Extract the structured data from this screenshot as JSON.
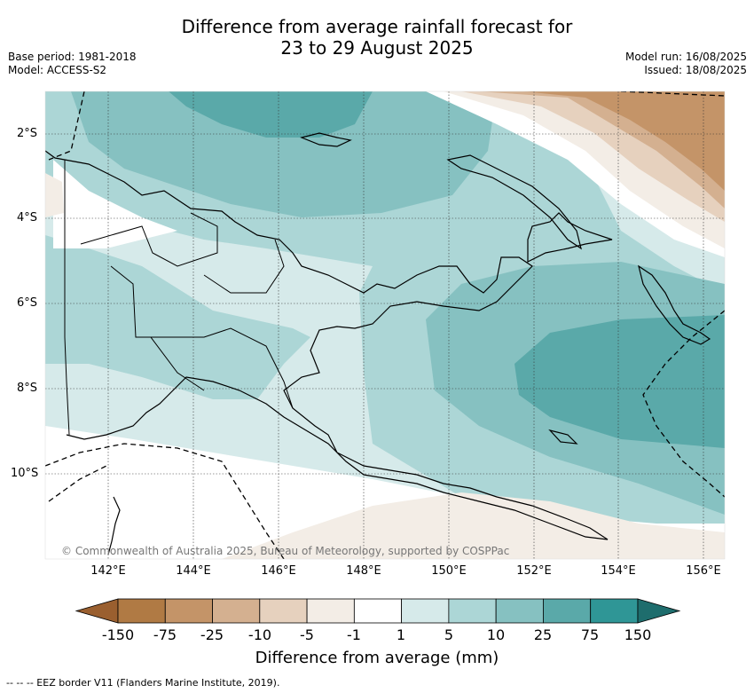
{
  "header": {
    "title_line1": "Difference from average rainfall forecast for",
    "title_line2": "23 to 29 August 2025",
    "base_period": "Base period: 1981-2018",
    "model": "Model: ACCESS-S2",
    "model_run": "Model run: 16/08/2025",
    "issued": "Issued: 18/08/2025"
  },
  "map": {
    "lat_labels": [
      "2°S",
      "4°S",
      "6°S",
      "8°S",
      "10°S"
    ],
    "lon_labels": [
      "142°E",
      "144°E",
      "146°E",
      "148°E",
      "150°E",
      "152°E",
      "154°E",
      "156°E"
    ],
    "copyright": "© Commonwealth of Australia 2025, Bureau of Meteorology, supported by COSPPac"
  },
  "legend": {
    "ticks": [
      "-150",
      "-75",
      "-25",
      "-10",
      "-5",
      "-1",
      "1",
      "5",
      "10",
      "25",
      "75",
      "150"
    ],
    "colors": [
      "#9a5f2f",
      "#b07a44",
      "#c49468",
      "#d4b090",
      "#e6d1be",
      "#f3ede6",
      "#ffffff",
      "#d6eaea",
      "#acd6d6",
      "#86c1c1",
      "#5aa9a9",
      "#2f9696",
      "#1e6d6d"
    ],
    "label": "Difference from average (mm)"
  },
  "footnote": "-- -- -- EEZ border V11 (Flanders Marine Institute, 2019)."
}
